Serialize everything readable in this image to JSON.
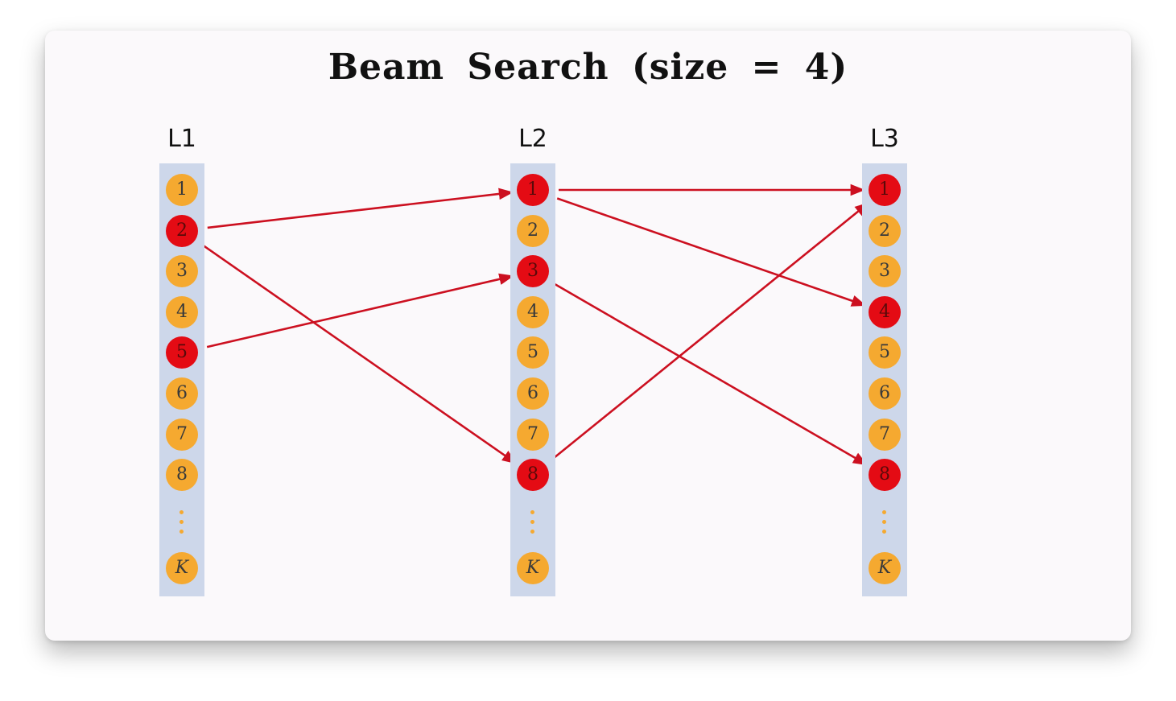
{
  "title": "Beam Search (size = 4)",
  "layers": [
    {
      "label": "L1",
      "nodes": [
        "1",
        "2",
        "3",
        "4",
        "5",
        "6",
        "7",
        "8"
      ],
      "selected": [
        "2",
        "5"
      ],
      "ellipsis": "⋮",
      "last_node": "K"
    },
    {
      "label": "L2",
      "nodes": [
        "1",
        "2",
        "3",
        "4",
        "5",
        "6",
        "7",
        "8"
      ],
      "selected": [
        "1",
        "3",
        "8"
      ],
      "ellipsis": "⋮",
      "last_node": "K"
    },
    {
      "label": "L3",
      "nodes": [
        "1",
        "2",
        "3",
        "4",
        "5",
        "6",
        "7",
        "8"
      ],
      "selected": [
        "1",
        "4",
        "8"
      ],
      "ellipsis": "⋮",
      "last_node": "K"
    }
  ],
  "edges": [
    {
      "from": [
        "L1",
        "2"
      ],
      "to": [
        "L2",
        "1"
      ]
    },
    {
      "from": [
        "L1",
        "2"
      ],
      "to": [
        "L2",
        "8"
      ]
    },
    {
      "from": [
        "L1",
        "5"
      ],
      "to": [
        "L2",
        "3"
      ]
    },
    {
      "from": [
        "L2",
        "1"
      ],
      "to": [
        "L3",
        "1"
      ]
    },
    {
      "from": [
        "L2",
        "1"
      ],
      "to": [
        "L3",
        "4"
      ]
    },
    {
      "from": [
        "L2",
        "3"
      ],
      "to": [
        "L3",
        "8"
      ]
    },
    {
      "from": [
        "L2",
        "8"
      ],
      "to": [
        "L3",
        "1"
      ]
    }
  ],
  "colors": {
    "node": "#f5a930",
    "selected_node": "#e40b14",
    "edge": "#cc1020",
    "column": "#cdd7ea"
  }
}
